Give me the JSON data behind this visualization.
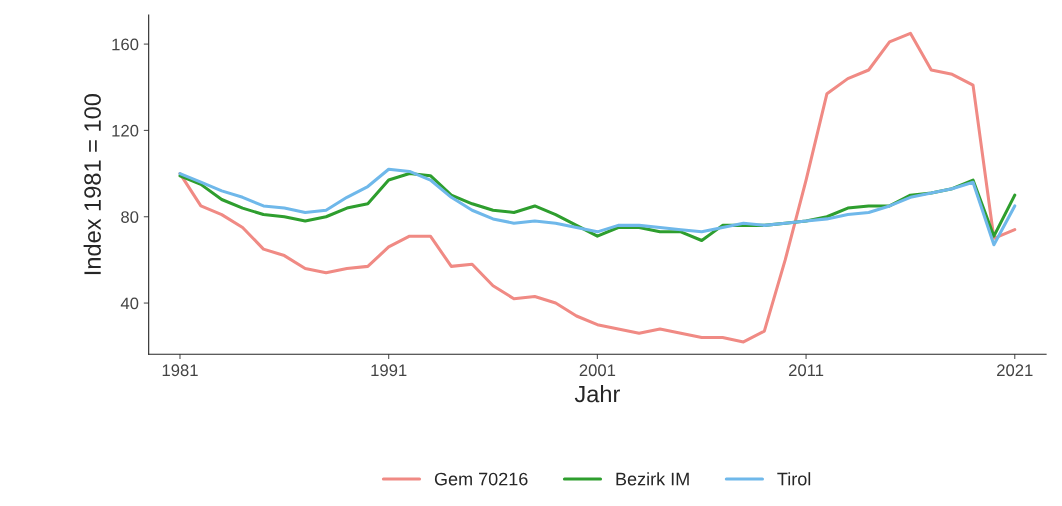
{
  "chart_data": {
    "type": "line",
    "xlabel": "Jahr",
    "ylabel": "Index 1981 = 100",
    "x": [
      1981,
      1982,
      1983,
      1984,
      1985,
      1986,
      1987,
      1988,
      1989,
      1990,
      1991,
      1992,
      1993,
      1994,
      1995,
      1996,
      1997,
      1998,
      1999,
      2000,
      2001,
      2002,
      2003,
      2004,
      2005,
      2006,
      2007,
      2008,
      2009,
      2010,
      2011,
      2012,
      2013,
      2014,
      2015,
      2016,
      2017,
      2018,
      2019,
      2020,
      2021
    ],
    "series": [
      {
        "name": "Gem 70216",
        "color": "#f08a84",
        "values": [
          100,
          85,
          81,
          75,
          65,
          62,
          56,
          54,
          56,
          57,
          66,
          71,
          71,
          57,
          58,
          48,
          42,
          43,
          40,
          34,
          30,
          28,
          26,
          28,
          26,
          24,
          24,
          22,
          27,
          60,
          97,
          137,
          144,
          148,
          161,
          165,
          148,
          146,
          141,
          70,
          74
        ]
      },
      {
        "name": "Bezirk IM",
        "color": "#2e9e2e",
        "values": [
          99,
          95,
          88,
          84,
          81,
          80,
          78,
          80,
          84,
          86,
          97,
          100,
          99,
          90,
          86,
          83,
          82,
          85,
          81,
          76,
          71,
          75,
          75,
          73,
          73,
          69,
          76,
          76,
          76,
          77,
          78,
          80,
          84,
          85,
          85,
          90,
          91,
          93,
          97,
          71,
          90
        ]
      },
      {
        "name": "Tirol",
        "color": "#6fb8ea",
        "values": [
          100,
          96,
          92,
          89,
          85,
          84,
          82,
          83,
          89,
          94,
          102,
          101,
          97,
          89,
          83,
          79,
          77,
          78,
          77,
          75,
          73,
          76,
          76,
          75,
          74,
          73,
          75,
          77,
          76,
          77,
          78,
          79,
          81,
          82,
          85,
          89,
          91,
          93,
          96,
          67,
          85
        ]
      }
    ],
    "xlim": [
      1979.5,
      2022.5
    ],
    "xticks": [
      1981,
      1991,
      2001,
      2011,
      2021
    ],
    "ylim": [
      16.3,
      173.4
    ],
    "yticks": [
      40,
      80,
      120,
      160
    ],
    "grid": false,
    "legend": "bottom",
    "marker": "none",
    "line_style": "solid"
  }
}
